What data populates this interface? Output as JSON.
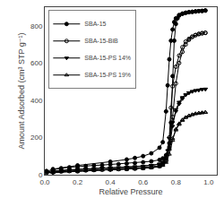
{
  "chart_data": {
    "type": "line",
    "xlabel": "Relative Pressure",
    "ylabel": "Amount Adsorbed (cm³ STP g⁻¹)",
    "xlim": [
      0.0,
      1.05
    ],
    "ylim": [
      0,
      900
    ],
    "xticks": [
      {
        "value": 0.0,
        "label": "0.0"
      },
      0.2,
      0.4,
      0.6,
      0.8,
      {
        "value": 1.0,
        "label": "1.0"
      }
    ],
    "yticks": [
      0,
      200,
      400,
      600,
      800
    ],
    "grid": false,
    "legend": "upper left",
    "series": [
      {
        "name": "SBA-15",
        "color": "black",
        "marker": "circle",
        "adsorption": {
          "x": [
            0.01,
            0.05,
            0.1,
            0.15,
            0.2,
            0.25,
            0.3,
            0.35,
            0.4,
            0.45,
            0.5,
            0.55,
            0.6,
            0.65,
            0.7,
            0.72,
            0.74,
            0.76,
            0.77,
            0.78,
            0.79,
            0.8,
            0.81,
            0.82,
            0.84,
            0.86,
            0.88,
            0.9,
            0.92,
            0.94,
            0.96,
            0.98
          ],
          "values": [
            20,
            28,
            35,
            40,
            44,
            47,
            50,
            52,
            55,
            57,
            60,
            63,
            67,
            72,
            80,
            88,
            105,
            170,
            280,
            530,
            720,
            810,
            840,
            855,
            865,
            870,
            873,
            875,
            877,
            879,
            880,
            882
          ]
        },
        "desorption": {
          "x": [
            0.98,
            0.96,
            0.94,
            0.92,
            0.9,
            0.88,
            0.86,
            0.84,
            0.82,
            0.8,
            0.79,
            0.78,
            0.77,
            0.76,
            0.75,
            0.74,
            0.72,
            0.7,
            0.65,
            0.6,
            0.55,
            0.5,
            0.4,
            0.2,
            0.05
          ],
          "values": [
            882,
            880,
            879,
            877,
            875,
            873,
            870,
            865,
            858,
            840,
            820,
            780,
            720,
            620,
            480,
            340,
            175,
            145,
            115,
            100,
            90,
            82,
            70,
            50,
            30
          ]
        }
      },
      {
        "name": "SBA-15-BiB",
        "color": "black",
        "marker": "circle-open",
        "adsorption": {
          "x": [
            0.01,
            0.05,
            0.1,
            0.15,
            0.2,
            0.25,
            0.3,
            0.35,
            0.4,
            0.45,
            0.5,
            0.55,
            0.6,
            0.65,
            0.7,
            0.72,
            0.74,
            0.76,
            0.78,
            0.8,
            0.82,
            0.84,
            0.86,
            0.88,
            0.9,
            0.92,
            0.94,
            0.96,
            0.98
          ],
          "values": [
            10,
            14,
            17,
            19,
            21,
            23,
            25,
            27,
            28,
            30,
            32,
            34,
            37,
            41,
            48,
            56,
            75,
            140,
            310,
            490,
            600,
            660,
            700,
            725,
            740,
            750,
            756,
            760,
            762
          ]
        },
        "desorption": {
          "x": [
            0.98,
            0.96,
            0.94,
            0.92,
            0.9,
            0.88,
            0.86,
            0.84,
            0.82,
            0.8,
            0.78,
            0.77,
            0.76,
            0.75,
            0.74,
            0.72,
            0.7,
            0.65,
            0.6,
            0.55,
            0.5,
            0.4,
            0.2,
            0.05
          ],
          "values": [
            762,
            760,
            756,
            750,
            742,
            730,
            715,
            685,
            640,
            580,
            475,
            360,
            200,
            110,
            75,
            55,
            47,
            40,
            36,
            33,
            31,
            28,
            18,
            12
          ]
        }
      },
      {
        "name": "SBA-15-PS 14%",
        "color": "black",
        "marker": "triangle-down",
        "adsorption": {
          "x": [
            0.01,
            0.05,
            0.1,
            0.15,
            0.2,
            0.25,
            0.3,
            0.35,
            0.4,
            0.45,
            0.5,
            0.55,
            0.6,
            0.65,
            0.7,
            0.72,
            0.74,
            0.76,
            0.78,
            0.8,
            0.82,
            0.84,
            0.86,
            0.88,
            0.9,
            0.92,
            0.94,
            0.96,
            0.98
          ],
          "values": [
            15,
            20,
            24,
            27,
            30,
            32,
            34,
            36,
            37,
            39,
            41,
            43,
            46,
            50,
            57,
            65,
            85,
            145,
            260,
            350,
            390,
            415,
            430,
            440,
            447,
            452,
            455,
            458,
            460
          ]
        },
        "desorption": {
          "x": [
            0.98,
            0.96,
            0.94,
            0.92,
            0.9,
            0.88,
            0.86,
            0.84,
            0.82,
            0.8,
            0.78,
            0.76,
            0.75,
            0.74,
            0.72,
            0.7,
            0.65,
            0.6,
            0.55,
            0.5,
            0.4,
            0.2,
            0.05
          ],
          "values": [
            460,
            458,
            455,
            452,
            447,
            440,
            428,
            408,
            380,
            340,
            280,
            195,
            130,
            90,
            68,
            58,
            51,
            46,
            43,
            40,
            37,
            27,
            18
          ]
        }
      },
      {
        "name": "SBA-15-PS 19%",
        "color": "black",
        "marker": "triangle-up-open",
        "adsorption": {
          "x": [
            0.01,
            0.05,
            0.1,
            0.15,
            0.2,
            0.25,
            0.3,
            0.35,
            0.4,
            0.45,
            0.5,
            0.55,
            0.6,
            0.65,
            0.7,
            0.72,
            0.74,
            0.76,
            0.78,
            0.8,
            0.82,
            0.84,
            0.86,
            0.88,
            0.9,
            0.92,
            0.94,
            0.96,
            0.98
          ],
          "values": [
            10,
            13,
            16,
            18,
            20,
            22,
            23,
            25,
            26,
            28,
            29,
            31,
            33,
            37,
            43,
            50,
            66,
            110,
            185,
            245,
            275,
            295,
            308,
            317,
            323,
            328,
            331,
            333,
            335
          ]
        },
        "desorption": {
          "x": [
            0.98,
            0.96,
            0.94,
            0.92,
            0.9,
            0.88,
            0.86,
            0.84,
            0.82,
            0.8,
            0.78,
            0.76,
            0.74,
            0.72,
            0.7,
            0.65,
            0.6,
            0.55,
            0.5,
            0.4,
            0.2,
            0.05
          ],
          "values": [
            335,
            333,
            331,
            328,
            323,
            317,
            308,
            292,
            270,
            240,
            195,
            138,
            85,
            57,
            47,
            40,
            36,
            33,
            30,
            27,
            19,
            12
          ]
        }
      }
    ]
  }
}
